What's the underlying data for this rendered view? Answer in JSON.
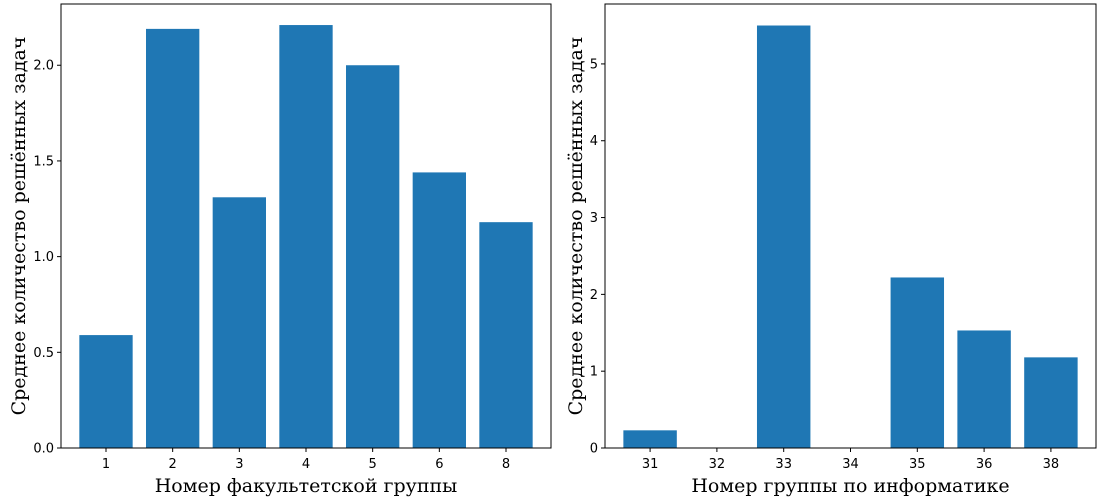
{
  "chart_data": [
    {
      "type": "bar",
      "categories": [
        "1",
        "2",
        "3",
        "4",
        "5",
        "6",
        "8"
      ],
      "values": [
        0.59,
        2.19,
        1.31,
        2.21,
        2.0,
        1.44,
        1.18
      ],
      "title": "",
      "xlabel": "Номер факультетской группы",
      "ylabel": "Среднее количество решённых задач",
      "ylim": [
        0,
        2.32
      ],
      "yticks": [
        0.0,
        0.5,
        1.0,
        1.5,
        2.0
      ],
      "ytick_labels": [
        "0.0",
        "0.5",
        "1.0",
        "1.5",
        "2.0"
      ],
      "grid": false,
      "color": "#1f77b4"
    },
    {
      "type": "bar",
      "categories": [
        "31",
        "32",
        "33",
        "34",
        "35",
        "36",
        "38"
      ],
      "values": [
        0.23,
        0,
        5.5,
        0,
        2.22,
        1.53,
        1.18
      ],
      "title": "",
      "xlabel": "Номер группы по информатике",
      "ylabel": "Среднее количество решённых задач",
      "ylim": [
        0,
        5.78
      ],
      "yticks": [
        0,
        1,
        2,
        3,
        4,
        5
      ],
      "ytick_labels": [
        "0",
        "1",
        "2",
        "3",
        "4",
        "5"
      ],
      "grid": false,
      "color": "#1f77b4"
    }
  ]
}
